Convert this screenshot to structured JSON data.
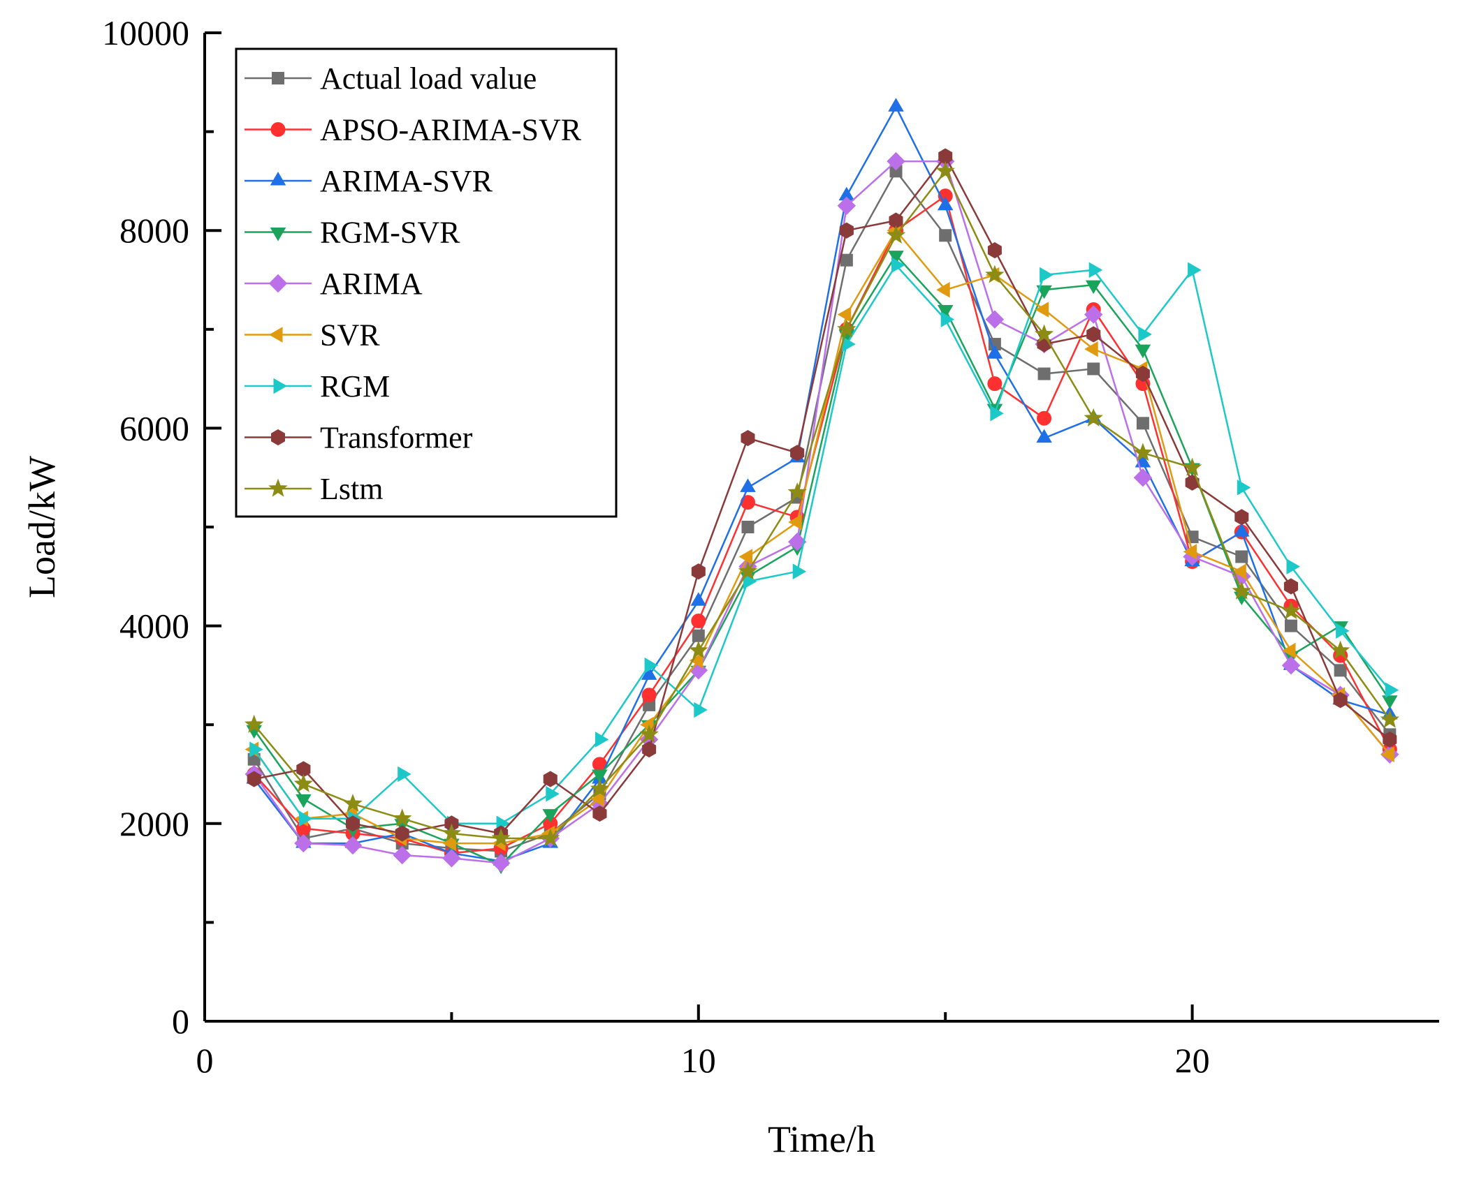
{
  "chart_data": {
    "type": "line",
    "title": "",
    "xlabel": "Time/h",
    "ylabel": "Load/kW",
    "xlim": [
      0,
      25
    ],
    "ylim": [
      0,
      10000
    ],
    "x_ticks": [
      0,
      10,
      20
    ],
    "x_minor_ticks": [
      5,
      15
    ],
    "y_ticks": [
      0,
      2000,
      4000,
      6000,
      8000,
      10000
    ],
    "y_minor_ticks": [
      1000,
      3000,
      5000,
      7000,
      9000
    ],
    "grid": false,
    "legend_position": "top-left",
    "x": [
      1,
      2,
      3,
      4,
      5,
      6,
      7,
      8,
      9,
      10,
      11,
      12,
      13,
      14,
      15,
      16,
      17,
      18,
      19,
      20,
      21,
      22,
      23,
      24
    ],
    "series": [
      {
        "name": "Actual load value",
        "color": "#6e6e6e",
        "marker": "square",
        "values": [
          2650,
          1850,
          1950,
          1800,
          1750,
          1720,
          1900,
          2300,
          3200,
          3900,
          5000,
          5300,
          7700,
          8600,
          7950,
          6850,
          6550,
          6600,
          6050,
          4900,
          4700,
          4000,
          3550,
          2900
        ]
      },
      {
        "name": "APSO-ARIMA-SVR",
        "color": "#ff3030",
        "marker": "circle",
        "values": [
          2500,
          1950,
          1900,
          1850,
          1700,
          1750,
          2000,
          2600,
          3300,
          4050,
          5250,
          5100,
          7000,
          8000,
          8350,
          6450,
          6100,
          7200,
          6450,
          4650,
          4950,
          4200,
          3700,
          2750
        ]
      },
      {
        "name": "ARIMA-SVR",
        "color": "#1f6fe6",
        "marker": "triangle-up",
        "values": [
          2450,
          1800,
          1800,
          1900,
          1700,
          1620,
          1800,
          2450,
          3500,
          4250,
          5400,
          5700,
          8350,
          9250,
          8250,
          6750,
          5900,
          6100,
          5650,
          4650,
          4950,
          3600,
          3250,
          3100
        ]
      },
      {
        "name": "RGM-SVR",
        "color": "#1aa35a",
        "marker": "triangle-down",
        "values": [
          2950,
          2250,
          1950,
          2000,
          1800,
          1580,
          2100,
          2500,
          3000,
          3550,
          4500,
          4800,
          6950,
          7750,
          7200,
          6200,
          7400,
          7450,
          6800,
          5600,
          4300,
          3700,
          4000,
          3250
        ]
      },
      {
        "name": "ARIMA",
        "color": "#bb6fe8",
        "marker": "diamond",
        "values": [
          2500,
          1800,
          1780,
          1680,
          1650,
          1600,
          1850,
          2200,
          2850,
          3550,
          4600,
          4850,
          8250,
          8700,
          8700,
          7100,
          6850,
          7150,
          5500,
          4700,
          4500,
          3600,
          3300,
          2700
        ]
      },
      {
        "name": "SVR",
        "color": "#e09a10",
        "marker": "triangle-left",
        "values": [
          2750,
          2050,
          2100,
          1850,
          1800,
          1800,
          1900,
          2250,
          3000,
          3650,
          4700,
          5050,
          7150,
          8000,
          7400,
          7550,
          7200,
          6800,
          6600,
          4750,
          4550,
          3750,
          3300,
          2700
        ]
      },
      {
        "name": "RGM",
        "color": "#1cc8c8",
        "marker": "triangle-right",
        "values": [
          2750,
          2050,
          2050,
          2500,
          2000,
          2000,
          2300,
          2850,
          3600,
          3150,
          4450,
          4550,
          6850,
          7650,
          7100,
          6150,
          7550,
          7600,
          6950,
          7600,
          5400,
          4600,
          3950,
          3350
        ]
      },
      {
        "name": "Transformer",
        "color": "#8b3a3a",
        "marker": "hexagon",
        "values": [
          2450,
          2550,
          2000,
          1900,
          2000,
          1900,
          2450,
          2100,
          2750,
          4550,
          5900,
          5750,
          8000,
          8100,
          8750,
          7800,
          6850,
          6950,
          6550,
          5450,
          5100,
          4400,
          3250,
          2850
        ]
      },
      {
        "name": "Lstm",
        "color": "#8c8c14",
        "marker": "star",
        "values": [
          3000,
          2400,
          2200,
          2050,
          1900,
          1850,
          1850,
          2350,
          2900,
          3750,
          4550,
          5350,
          7000,
          7950,
          8600,
          7550,
          6950,
          6100,
          5750,
          5600,
          4350,
          4150,
          3750,
          3050
        ]
      }
    ]
  }
}
